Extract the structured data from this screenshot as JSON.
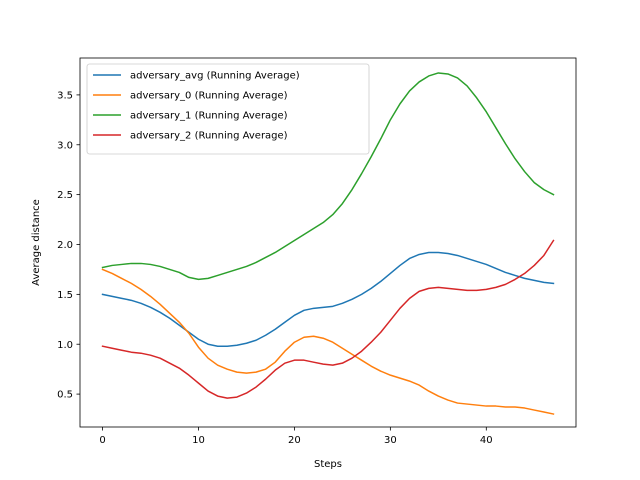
{
  "chart_data": {
    "type": "line",
    "title": "",
    "xlabel": "Steps",
    "ylabel": "Average distance",
    "xlim": [
      -2.35,
      49.35
    ],
    "ylim": [
      0.17,
      3.87
    ],
    "xticks": [
      0,
      10,
      20,
      30,
      40
    ],
    "yticks": [
      0.5,
      1.0,
      1.5,
      2.0,
      2.5,
      3.0,
      3.5
    ],
    "ytick_labels": [
      "0.5",
      "1.0",
      "1.5",
      "2.0",
      "2.5",
      "3.0",
      "3.5"
    ],
    "grid": false,
    "legend_position": "top-left",
    "x": [
      0,
      1,
      2,
      3,
      4,
      5,
      6,
      7,
      8,
      9,
      10,
      11,
      12,
      13,
      14,
      15,
      16,
      17,
      18,
      19,
      20,
      21,
      22,
      23,
      24,
      25,
      26,
      27,
      28,
      29,
      30,
      31,
      32,
      33,
      34,
      35,
      36,
      37,
      38,
      39,
      40,
      41,
      42,
      43,
      44,
      45,
      46,
      47
    ],
    "series": [
      {
        "name": "adversary_avg (Running Average)",
        "color": "#1f77b4",
        "values": [
          1.5,
          1.48,
          1.46,
          1.44,
          1.41,
          1.37,
          1.32,
          1.26,
          1.19,
          1.12,
          1.05,
          1.0,
          0.98,
          0.98,
          0.99,
          1.01,
          1.04,
          1.09,
          1.15,
          1.22,
          1.29,
          1.34,
          1.36,
          1.37,
          1.38,
          1.41,
          1.45,
          1.5,
          1.56,
          1.63,
          1.71,
          1.79,
          1.86,
          1.9,
          1.92,
          1.92,
          1.91,
          1.89,
          1.86,
          1.83,
          1.8,
          1.76,
          1.72,
          1.69,
          1.66,
          1.64,
          1.62,
          1.61
        ]
      },
      {
        "name": "adversary_0 (Running Average)",
        "color": "#ff7f0e",
        "values": [
          1.75,
          1.71,
          1.66,
          1.61,
          1.55,
          1.48,
          1.4,
          1.31,
          1.22,
          1.11,
          0.97,
          0.86,
          0.79,
          0.75,
          0.72,
          0.71,
          0.72,
          0.75,
          0.82,
          0.93,
          1.02,
          1.07,
          1.08,
          1.06,
          1.02,
          0.96,
          0.9,
          0.84,
          0.78,
          0.73,
          0.69,
          0.66,
          0.63,
          0.59,
          0.53,
          0.48,
          0.44,
          0.41,
          0.4,
          0.39,
          0.38,
          0.38,
          0.37,
          0.37,
          0.36,
          0.34,
          0.32,
          0.3
        ]
      },
      {
        "name": "adversary_1 (Running Average)",
        "color": "#2ca02c",
        "values": [
          1.77,
          1.79,
          1.8,
          1.81,
          1.81,
          1.8,
          1.78,
          1.75,
          1.72,
          1.67,
          1.65,
          1.66,
          1.69,
          1.72,
          1.75,
          1.78,
          1.82,
          1.87,
          1.92,
          1.98,
          2.04,
          2.1,
          2.16,
          2.22,
          2.3,
          2.41,
          2.55,
          2.71,
          2.88,
          3.06,
          3.25,
          3.41,
          3.54,
          3.63,
          3.69,
          3.72,
          3.71,
          3.67,
          3.59,
          3.47,
          3.33,
          3.17,
          3.01,
          2.86,
          2.73,
          2.62,
          2.55,
          2.5
        ]
      },
      {
        "name": "adversary_2 (Running Average)",
        "color": "#d62728",
        "values": [
          0.98,
          0.96,
          0.94,
          0.92,
          0.91,
          0.89,
          0.86,
          0.81,
          0.76,
          0.69,
          0.61,
          0.53,
          0.48,
          0.46,
          0.47,
          0.51,
          0.57,
          0.65,
          0.74,
          0.81,
          0.84,
          0.84,
          0.82,
          0.8,
          0.79,
          0.81,
          0.86,
          0.93,
          1.02,
          1.12,
          1.24,
          1.36,
          1.46,
          1.53,
          1.56,
          1.57,
          1.56,
          1.55,
          1.54,
          1.54,
          1.55,
          1.57,
          1.6,
          1.65,
          1.71,
          1.79,
          1.89,
          2.04
        ]
      }
    ]
  }
}
